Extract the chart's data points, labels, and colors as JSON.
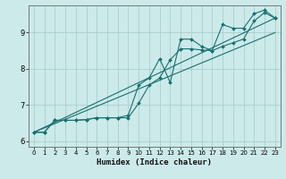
{
  "xlabel": "Humidex (Indice chaleur)",
  "bg_color": "#cceaea",
  "grid_color": "#aacece",
  "line_color": "#1a7070",
  "xlim": [
    -0.5,
    23.5
  ],
  "ylim": [
    5.85,
    9.75
  ],
  "xticks": [
    0,
    1,
    2,
    3,
    4,
    5,
    6,
    7,
    8,
    9,
    10,
    11,
    12,
    13,
    14,
    15,
    16,
    17,
    18,
    19,
    20,
    21,
    22,
    23
  ],
  "yticks": [
    6,
    7,
    8,
    9
  ],
  "line1_x": [
    0,
    1,
    2,
    3,
    4,
    5,
    6,
    7,
    8,
    9,
    10,
    11,
    12,
    13,
    14,
    15,
    16,
    17,
    18,
    19,
    20,
    21,
    22,
    23
  ],
  "line1_y": [
    6.25,
    6.25,
    6.58,
    6.58,
    6.58,
    6.6,
    6.65,
    6.65,
    6.65,
    6.65,
    7.05,
    7.55,
    7.75,
    8.25,
    8.55,
    8.55,
    8.52,
    8.5,
    8.62,
    8.72,
    8.82,
    9.32,
    9.55,
    9.4
  ],
  "line2_x": [
    0,
    1,
    2,
    3,
    4,
    5,
    6,
    7,
    8,
    9,
    10,
    11,
    12,
    13,
    14,
    15,
    16,
    17,
    18,
    19,
    20,
    21,
    22,
    23
  ],
  "line2_y": [
    6.25,
    6.25,
    6.58,
    6.58,
    6.58,
    6.6,
    6.65,
    6.65,
    6.65,
    6.72,
    7.55,
    7.75,
    8.28,
    7.62,
    8.82,
    8.82,
    8.62,
    8.5,
    9.22,
    9.12,
    9.12,
    9.52,
    9.62,
    9.4
  ],
  "regline1_x": [
    0,
    23
  ],
  "regline1_y": [
    6.25,
    9.4
  ],
  "regline2_x": [
    0,
    23
  ],
  "regline2_y": [
    6.25,
    9.0
  ]
}
